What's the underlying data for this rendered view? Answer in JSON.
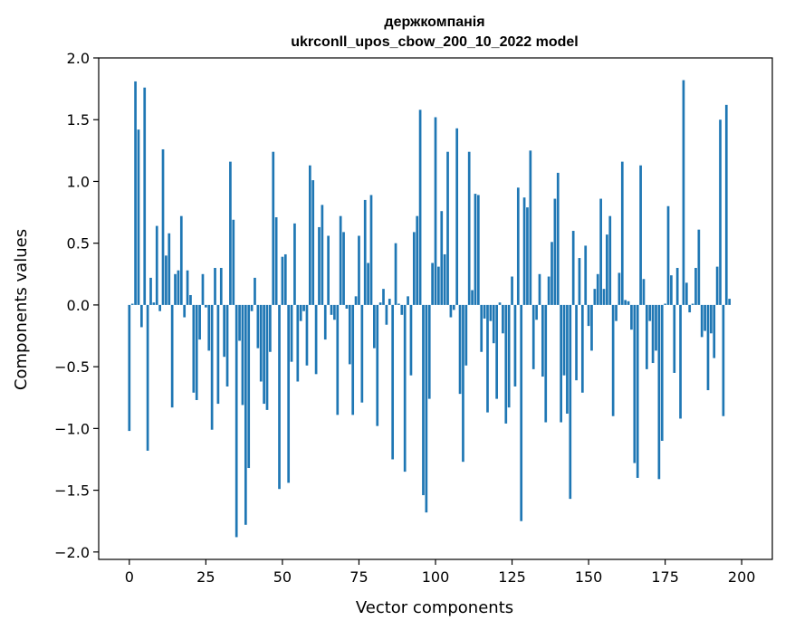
{
  "chart_data": {
    "type": "bar",
    "title_line1": "держкомпанія",
    "title_line2": "ukrconll_upos_cbow_200_10_2022 model",
    "xlabel": "Vector components",
    "ylabel": "Components values",
    "xlim": [
      -10,
      210
    ],
    "ylim": [
      -2.06,
      2.0
    ],
    "xticks": [
      0,
      25,
      50,
      75,
      100,
      125,
      150,
      175,
      200
    ],
    "yticks": [
      -2.0,
      -1.5,
      -1.0,
      -0.5,
      0.0,
      0.5,
      1.0,
      1.5,
      2.0
    ],
    "ytick_labels": [
      "−2.0",
      "−1.5",
      "−1.0",
      "−0.5",
      "0.0",
      "0.5",
      "1.0",
      "1.5",
      "2.0"
    ],
    "bar_color": "#1f77b4",
    "values": [
      -1.02,
      0.01,
      1.81,
      1.42,
      -0.18,
      1.76,
      -1.18,
      0.22,
      0.02,
      0.64,
      -0.05,
      1.26,
      0.4,
      0.58,
      -0.83,
      0.25,
      0.28,
      0.72,
      -0.1,
      0.28,
      0.08,
      -0.71,
      -0.77,
      -0.28,
      0.25,
      -0.02,
      -0.37,
      -1.01,
      0.3,
      -0.8,
      0.3,
      -0.42,
      -0.66,
      1.16,
      0.69,
      -1.88,
      -0.29,
      -0.81,
      -1.78,
      -1.32,
      -0.05,
      0.22,
      -0.35,
      -0.62,
      -0.8,
      -0.85,
      -0.38,
      1.24,
      0.71,
      -1.49,
      0.39,
      0.41,
      -1.44,
      -0.46,
      0.66,
      -0.62,
      -0.13,
      -0.05,
      -0.49,
      1.13,
      1.01,
      -0.56,
      0.63,
      0.81,
      -0.28,
      0.56,
      -0.08,
      -0.12,
      -0.89,
      0.72,
      0.59,
      -0.03,
      -0.48,
      -0.89,
      0.07,
      0.56,
      -0.79,
      0.85,
      0.34,
      0.89,
      -0.35,
      -0.98,
      0.02,
      0.13,
      -0.16,
      0.05,
      -1.25,
      0.5,
      0.01,
      -0.08,
      -1.35,
      0.07,
      -0.57,
      0.59,
      0.72,
      1.58,
      -1.54,
      -1.68,
      -0.76,
      0.34,
      1.52,
      0.31,
      0.76,
      0.41,
      1.24,
      -0.1,
      -0.04,
      1.43,
      -0.72,
      -1.27,
      -0.49,
      1.24,
      0.12,
      0.9,
      0.89,
      -0.38,
      -0.11,
      -0.87,
      -0.13,
      -0.31,
      -0.76,
      0.02,
      -0.23,
      -0.96,
      -0.83,
      0.23,
      -0.66,
      0.95,
      -1.75,
      0.87,
      0.79,
      1.25,
      -0.52,
      -0.12,
      0.25,
      -0.58,
      -0.95,
      0.23,
      0.51,
      0.86,
      1.07,
      -0.95,
      -0.57,
      -0.88,
      -1.57,
      0.6,
      -0.61,
      0.38,
      -0.71,
      0.48,
      -0.17,
      -0.37,
      0.13,
      0.25,
      0.86,
      0.13,
      0.57,
      0.72,
      -0.9,
      -0.13,
      0.26,
      1.16,
      0.04,
      0.03,
      -0.2,
      -1.28,
      -1.4,
      1.13,
      0.21,
      -0.52,
      -0.13,
      -0.47,
      -0.37,
      -1.41,
      -1.1,
      0.01,
      0.8,
      0.24,
      -0.55,
      0.3,
      -0.92,
      1.82,
      0.18,
      -0.06,
      0.01,
      0.3,
      0.61,
      -0.26,
      -0.21,
      -0.69,
      -0.23,
      -0.43,
      0.31,
      1.5,
      -0.9,
      1.62,
      0.05
    ]
  }
}
